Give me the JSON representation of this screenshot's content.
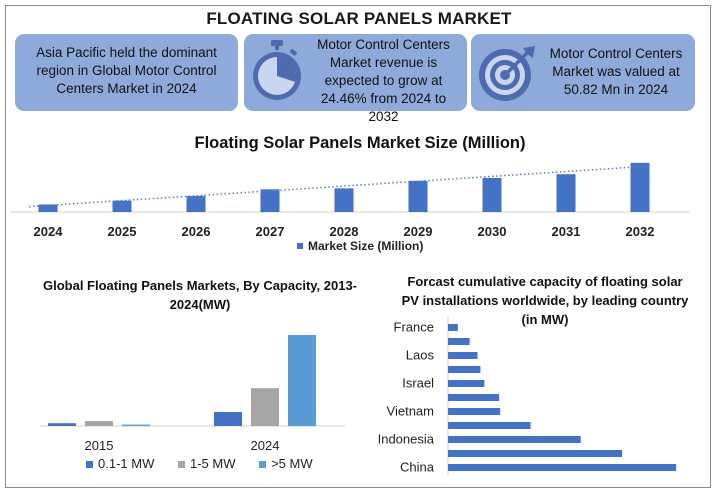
{
  "title": "FLOATING SOLAR PANELS MARKET",
  "cards": [
    {
      "text": "Asia Pacific held the dominant region in Global Motor Control Centers Market in 2024",
      "icon": "none"
    },
    {
      "text": "Motor Control Centers Market revenue is expected to grow at 24.46% from 2024 to 2032",
      "icon": "stopwatch-icon"
    },
    {
      "text": "Motor Control Centers Market was valued at 50.82 Mn in 2024",
      "icon": "target-icon"
    }
  ],
  "colors": {
    "card": "#8eaadb",
    "bar": "#4472c4",
    "grey": "#a5a5a5",
    "light_blue": "#5b9bd5",
    "trend": "#5b7ec4"
  },
  "chart_data": [
    {
      "type": "bar",
      "title": "Floating Solar Panels Market Size (Million)",
      "categories": [
        "2024",
        "2025",
        "2026",
        "2027",
        "2028",
        "2029",
        "2030",
        "2031",
        "2032"
      ],
      "series": [
        {
          "name": "Market Size (Million)",
          "values": [
            8,
            12,
            17,
            24,
            25,
            33,
            36,
            40,
            52
          ]
        }
      ],
      "trendline": "linear, dotted",
      "ylim": [
        0,
        55
      ],
      "legend": "bottom"
    },
    {
      "type": "bar",
      "title": "Global Floating Panels Markets, By Capacity, 2013-2024(MW)",
      "categories": [
        "2015",
        "2024"
      ],
      "series": [
        {
          "name": "0.1-1 MW",
          "values": [
            2,
            10
          ]
        },
        {
          "name": "1-5 MW",
          "values": [
            3.5,
            27
          ]
        },
        {
          "name": ">5 MW",
          "values": [
            1,
            65
          ]
        }
      ],
      "ylim": [
        0,
        70
      ],
      "legend": "bottom"
    },
    {
      "type": "bar",
      "orientation": "horizontal",
      "title": "Forcast cumulative capacity of floating solar PV installations worldwide, by leading country (in MW)",
      "categories": [
        "France",
        "",
        "Laos",
        "",
        "Israel",
        "",
        "Vietnam",
        "",
        "Indonesia",
        "",
        "China"
      ],
      "values": [
        10,
        22,
        30,
        33,
        37,
        52,
        53,
        84,
        135,
        177,
        232
      ],
      "xlim": [
        0,
        240
      ]
    }
  ]
}
